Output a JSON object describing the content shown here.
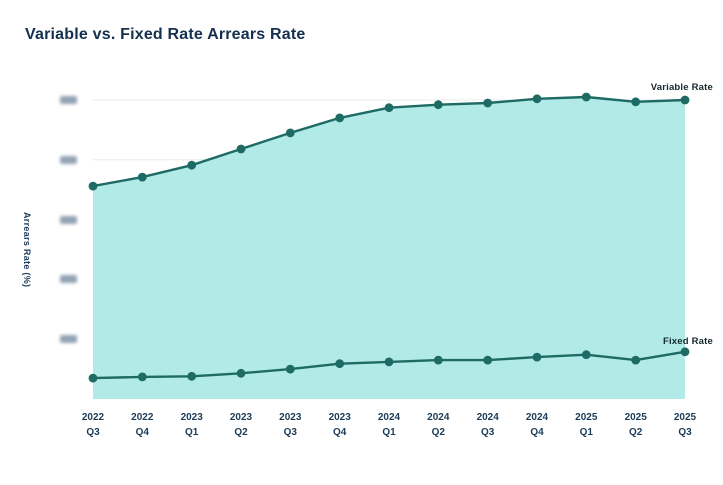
{
  "title": "Variable vs. Fixed Rate Arrears Rate",
  "y_axis": {
    "label": "Arrears Rate (%)",
    "tick_labels_redacted": true,
    "tick_count": 5
  },
  "x_axis": {
    "labels": [
      {
        "year": "2022",
        "quarter": "Q3"
      },
      {
        "year": "2022",
        "quarter": "Q4"
      },
      {
        "year": "2023",
        "quarter": "Q1"
      },
      {
        "year": "2023",
        "quarter": "Q2"
      },
      {
        "year": "2023",
        "quarter": "Q3"
      },
      {
        "year": "2023",
        "quarter": "Q4"
      },
      {
        "year": "2024",
        "quarter": "Q1"
      },
      {
        "year": "2024",
        "quarter": "Q2"
      },
      {
        "year": "2024",
        "quarter": "Q3"
      },
      {
        "year": "2024",
        "quarter": "Q4"
      },
      {
        "year": "2025",
        "quarter": "Q1"
      },
      {
        "year": "2025",
        "quarter": "Q2"
      },
      {
        "year": "2025",
        "quarter": "Q3"
      }
    ]
  },
  "series_labels": {
    "variable": "Variable Rate",
    "fixed": "Fixed Rate"
  },
  "colors": {
    "line": "#1d6b64",
    "dot": "#1d6b64",
    "fill": "#a9e8e3",
    "grid": "#e7eced",
    "title_text": "#15304e",
    "axis_text": "#1c3b57",
    "series_label_text": "#16282e",
    "redacted_pill": "#7f93a6"
  },
  "chart_data": {
    "type": "area",
    "title": "Variable vs. Fixed Rate Arrears Rate",
    "xlabel": "",
    "ylabel": "Arrears Rate (%)",
    "x": [
      "2022 Q3",
      "2022 Q4",
      "2023 Q1",
      "2023 Q2",
      "2023 Q3",
      "2023 Q4",
      "2024 Q1",
      "2024 Q2",
      "2024 Q3",
      "2024 Q4",
      "2025 Q1",
      "2025 Q2",
      "2025 Q3"
    ],
    "series": [
      {
        "name": "Variable Rate",
        "values": [
          3.56,
          3.71,
          3.91,
          4.18,
          4.45,
          4.7,
          4.87,
          4.92,
          4.95,
          5.02,
          5.05,
          4.97,
          5.0
        ],
        "area_fill": true
      },
      {
        "name": "Fixed Rate",
        "values": [
          0.35,
          0.37,
          0.38,
          0.43,
          0.5,
          0.59,
          0.62,
          0.65,
          0.65,
          0.7,
          0.74,
          0.65,
          0.79
        ],
        "area_fill": false
      }
    ],
    "ylim": [
      0,
      5.2
    ],
    "y_gridline_values": [
      1,
      2,
      3,
      4,
      5
    ],
    "y_tick_values_redacted": true,
    "grid": true,
    "legend_position": "inline-end-labels"
  }
}
